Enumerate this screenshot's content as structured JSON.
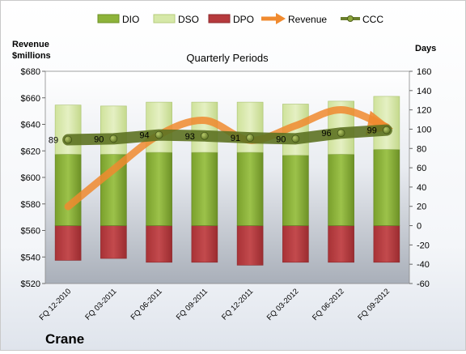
{
  "chart_data": {
    "type": "bar",
    "title": "Quarterly Periods",
    "company": "Crane",
    "categories": [
      "FQ 12-2010",
      "FQ 03-2011",
      "FQ 06-2011",
      "FQ 09-2011",
      "FQ 12-2011",
      "FQ 03-2012",
      "FQ 06-2012",
      "FQ 09-2012"
    ],
    "left_axis": {
      "label_line1": "Revenue",
      "label_line2": "$millions",
      "min": 520,
      "max": 680,
      "step": 20,
      "ticks": [
        "$520",
        "$540",
        "$560",
        "$580",
        "$600",
        "$620",
        "$640",
        "$660",
        "$680"
      ]
    },
    "right_axis": {
      "label": "Days",
      "min": -60,
      "max": 160,
      "step": 20,
      "ticks": [
        "-60",
        "-40",
        "-20",
        "0",
        "20",
        "40",
        "60",
        "80",
        "100",
        "120",
        "140",
        "160"
      ]
    },
    "legend": [
      {
        "name": "DIO",
        "kind": "bar",
        "color": "#8db33a"
      },
      {
        "name": "DSO",
        "kind": "bar",
        "color": "#d6e8a8"
      },
      {
        "name": "DPO",
        "kind": "bar",
        "color": "#b63a3d"
      },
      {
        "name": "Revenue",
        "kind": "arrow",
        "color": "#f08a2f"
      },
      {
        "name": "CCC",
        "kind": "line",
        "color": "#6b7f2e"
      }
    ],
    "series": [
      {
        "name": "DIO",
        "axis": "right",
        "values": [
          74,
          74,
          76,
          76,
          76,
          73,
          74,
          79
        ]
      },
      {
        "name": "DSO",
        "axis": "right",
        "values": [
          51,
          50,
          52,
          52,
          52,
          53,
          55,
          55
        ]
      },
      {
        "name": "DPO",
        "axis": "right",
        "values": [
          -36,
          -34,
          -38,
          -38,
          -41,
          -38,
          -38,
          -38
        ]
      },
      {
        "name": "Revenue",
        "axis": "left",
        "values": [
          578,
          606,
          632,
          643,
          628,
          639,
          651,
          638
        ]
      },
      {
        "name": "CCC",
        "axis": "right",
        "values": [
          89,
          90,
          94,
          93,
          91,
          90,
          96,
          99
        ]
      }
    ],
    "ccc_labels": [
      "89",
      "90",
      "94",
      "93",
      "91",
      "90",
      "96",
      "99"
    ]
  }
}
